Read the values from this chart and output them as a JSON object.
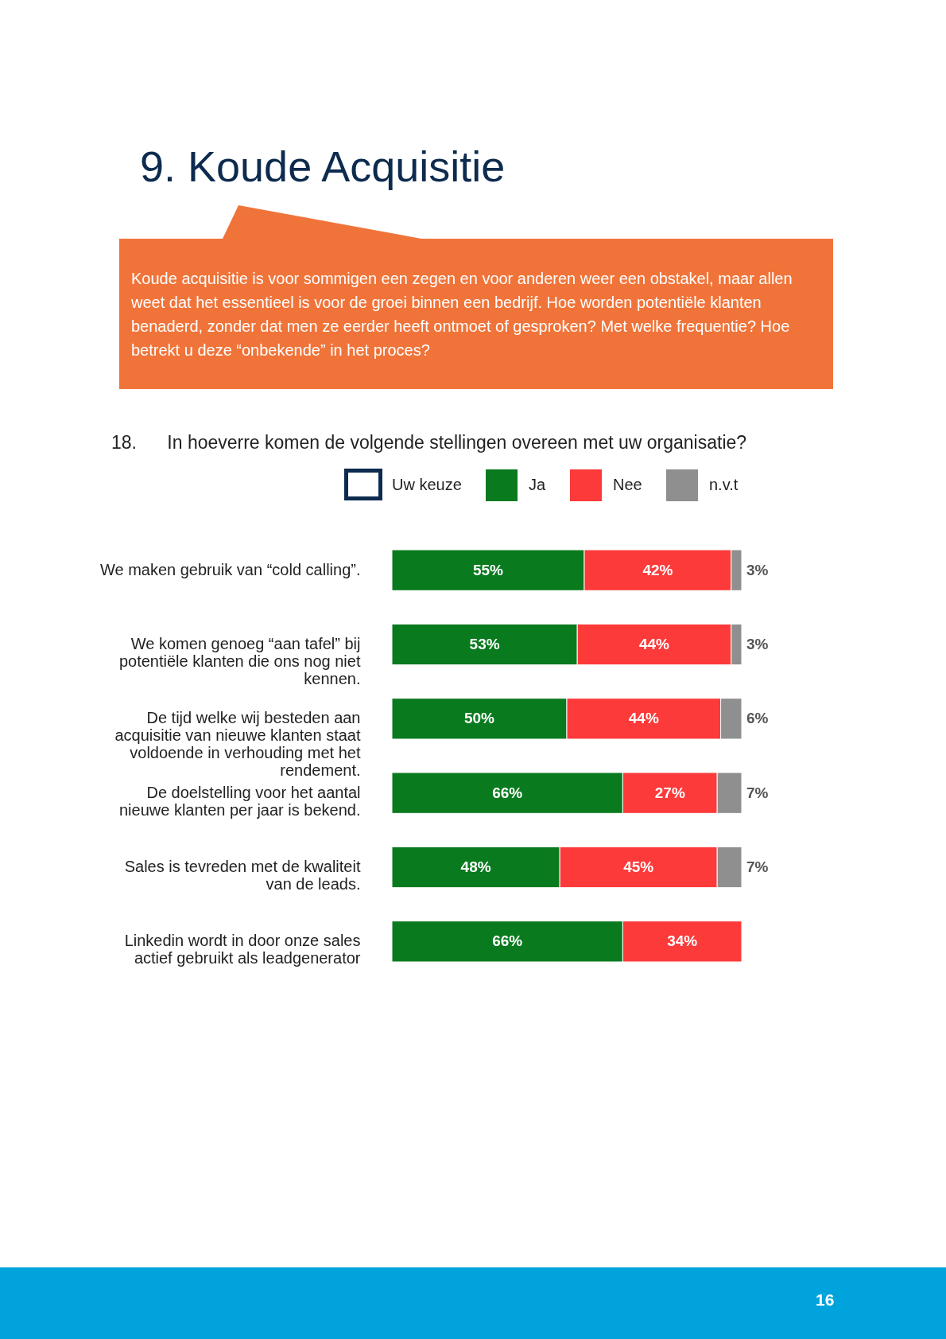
{
  "chart_data": {
    "type": "bar",
    "orientation": "horizontal",
    "stacked": true,
    "title": "9.  Koude Acquisitie",
    "subtitle": "Koude acquisitie is voor sommigen een zegen en voor anderen weer een obstakel, maar allen weet dat het essentieel is voor de groei binnen een bedrijf. Hoe worden potentiële klanten benaderd, zonder dat men ze eerder heeft ontmoet of gesproken? Met welke frequentie? Hoe betrekt u deze “onbekende” in het proces?",
    "annotations": [
      "18.      In hoeverre komen de volgende stellingen overeen met uw organisatie?",
      "16"
    ],
    "legend_title": "Uw keuze",
    "legend": "top",
    "tick_labels": "y",
    "categories": [
      "We maken gebruik van “cold calling”.",
      "We komen genoeg “aan tafel” bij potentiële klanten die ons nog niet kennen.",
      "De tijd welke wij besteden aan acquisitie van nieuwe klanten staat voldoende in verhouding met het rendement.",
      "De doelstelling voor het aantal nieuwe klanten per jaar is bekend.",
      "Sales is tevreden met de kwaliteit van de leads.",
      "Linkedin wordt in door onze sales actief gebruikt als leadgenerator"
    ],
    "series": [
      {
        "name": "Ja",
        "color": "#0a7a1e",
        "values": [
          55,
          53,
          50,
          66,
          48,
          66
        ],
        "value_labels": [
          "55%",
          "53%",
          "50%",
          "66%",
          "48%",
          "66%"
        ]
      },
      {
        "name": "Nee",
        "color": "#fc3a3a",
        "values": [
          42,
          44,
          44,
          27,
          45,
          34
        ],
        "value_labels": [
          "42%",
          "44%",
          "44%",
          "27%",
          "45%",
          "34%"
        ]
      },
      {
        "name": "n.v.t",
        "color": "#8f8f8f",
        "values": [
          3,
          3,
          6,
          7,
          7,
          null
        ],
        "value_labels": [
          "3%",
          "3%",
          "6%",
          "7%",
          "7%",
          null
        ]
      }
    ]
  }
}
